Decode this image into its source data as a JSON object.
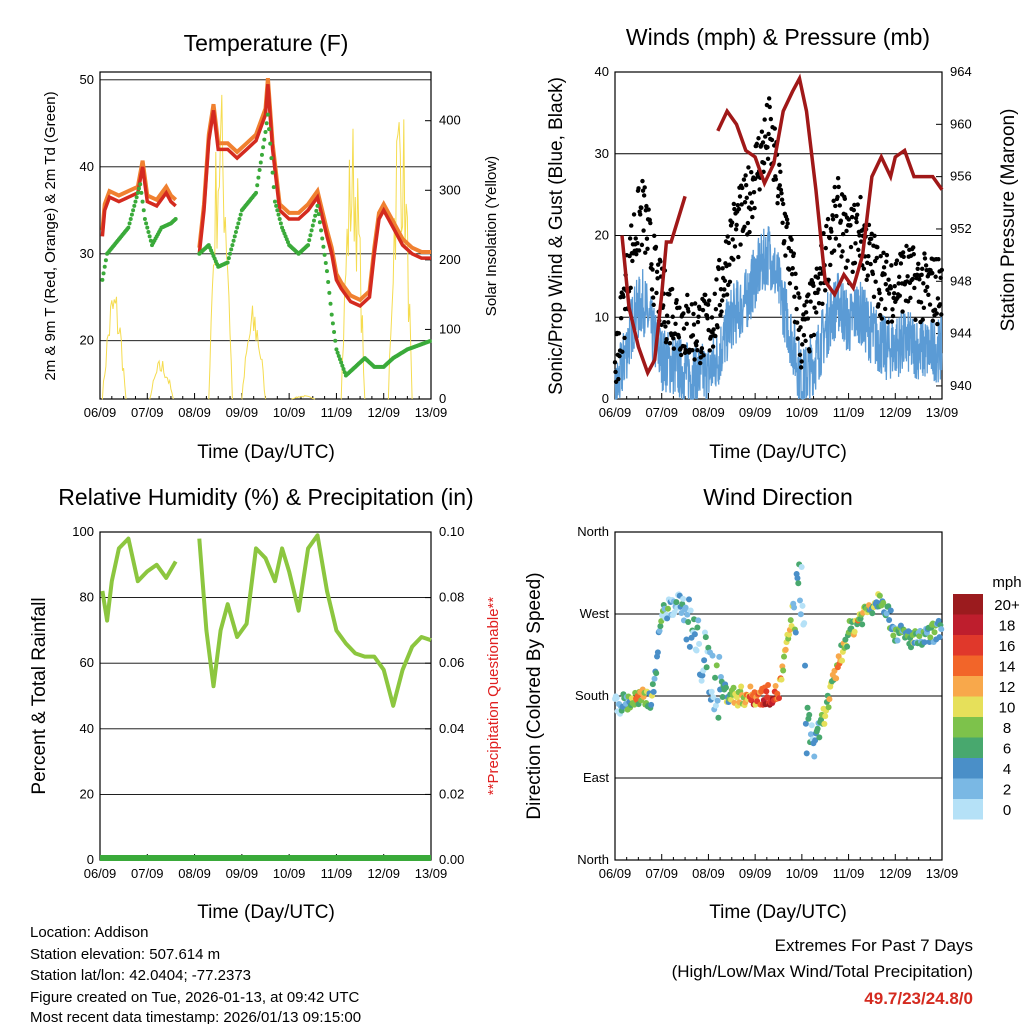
{
  "info": {
    "location": "Location: Addison",
    "elevation": "Station elevation: 507.614 m",
    "latlon": "Station lat/lon: 42.0404; -77.2373",
    "created": "Figure created on Tue, 2026-01-13, at 09:42 UTC",
    "recent": "Most recent data timestamp: 2026/01/13 09:15:00",
    "extremes_title": "Extremes For Past 7 Days",
    "extremes_sub": "(High/Low/Max Wind/Total Precipitation)",
    "extremes_value": "49.7/23/24.8/0"
  },
  "colors": {
    "temp": "#d42a1f",
    "temp9m": "#f08030",
    "dew": "#3aaa3a",
    "solar": "#f5dc50",
    "gust": "#000000",
    "wind": "#5b9bd5",
    "pressure": "#a01818",
    "rh": "#8cc63f",
    "precip": "#3aaa3a",
    "accent": "#d42a1f"
  },
  "chart_data": [
    {
      "type": "line",
      "title": "Temperature (F)",
      "xlabel": "Time (Day/UTC)",
      "ylabel": "2m & 9m T (Red, Orange) & 2m Td (Green)",
      "y2label": "Solar Insolation (Yellow)",
      "xticks": [
        "06/09",
        "07/09",
        "08/09",
        "09/09",
        "10/09",
        "11/09",
        "12/09",
        "13/09"
      ],
      "xlim": [
        0,
        7
      ],
      "ylim": [
        13.3,
        50.9
      ],
      "y2lim": [
        0,
        470
      ],
      "yticks": [
        "20",
        "30",
        "40",
        "50"
      ],
      "y2ticks": [
        "0",
        "100",
        "200",
        "300",
        "400"
      ],
      "series": [
        {
          "name": "2m T",
          "points": [
            [
              0.05,
              32
            ],
            [
              0.1,
              35
            ],
            [
              0.2,
              36.5
            ],
            [
              0.4,
              36
            ],
            [
              0.6,
              36.5
            ],
            [
              0.8,
              37
            ],
            [
              0.9,
              40
            ],
            [
              1.0,
              36
            ],
            [
              1.2,
              35.5
            ],
            [
              1.4,
              37
            ],
            [
              1.5,
              36
            ],
            [
              1.6,
              35.5
            ],
            null,
            [
              2.1,
              30
            ],
            [
              2.2,
              35
            ],
            [
              2.3,
              43
            ],
            [
              2.4,
              46.5
            ],
            [
              2.5,
              42
            ],
            [
              2.7,
              42
            ],
            [
              2.9,
              41
            ],
            [
              3.1,
              42
            ],
            [
              3.3,
              43
            ],
            [
              3.5,
              46
            ],
            [
              3.55,
              49.5
            ],
            [
              3.65,
              42
            ],
            [
              3.8,
              35
            ],
            [
              4.0,
              34
            ],
            [
              4.2,
              34
            ],
            [
              4.4,
              35
            ],
            [
              4.6,
              36.5
            ],
            [
              4.8,
              32
            ],
            [
              4.9,
              30
            ],
            [
              5.0,
              27
            ],
            [
              5.1,
              26
            ],
            [
              5.3,
              24.5
            ],
            [
              5.5,
              24
            ],
            [
              5.7,
              25
            ],
            [
              5.8,
              30
            ],
            [
              5.9,
              34
            ],
            [
              6.0,
              35
            ],
            [
              6.2,
              33
            ],
            [
              6.4,
              31
            ],
            [
              6.6,
              30
            ],
            [
              6.8,
              29.5
            ],
            [
              7.0,
              29.5
            ]
          ]
        },
        {
          "name": "2m Td",
          "points": [
            [
              0.05,
              27
            ],
            [
              0.15,
              30
            ],
            [
              0.3,
              31
            ],
            [
              0.6,
              33
            ],
            [
              0.85,
              38
            ],
            [
              0.95,
              34
            ],
            [
              1.1,
              31
            ],
            [
              1.3,
              33
            ],
            [
              1.5,
              33.5
            ],
            [
              1.6,
              34
            ],
            null,
            [
              2.1,
              30
            ],
            [
              2.3,
              31
            ],
            [
              2.5,
              28.5
            ],
            [
              2.7,
              29
            ],
            [
              3.0,
              35
            ],
            [
              3.3,
              37
            ],
            [
              3.5,
              44
            ],
            [
              3.55,
              46
            ],
            [
              3.7,
              36
            ],
            [
              3.85,
              33
            ],
            [
              4.0,
              31
            ],
            [
              4.2,
              30
            ],
            [
              4.4,
              31
            ],
            [
              4.6,
              35.5
            ],
            [
              4.8,
              28
            ],
            [
              4.9,
              23
            ],
            [
              5.0,
              19
            ],
            [
              5.2,
              16
            ],
            [
              5.4,
              17
            ],
            [
              5.6,
              18
            ],
            [
              5.8,
              17
            ],
            [
              6.0,
              17
            ],
            [
              6.2,
              18
            ],
            [
              6.5,
              19
            ],
            [
              7.0,
              20
            ]
          ]
        },
        {
          "name": "Solar",
          "peaks": [
            [
              0.3,
              170
            ],
            [
              1.3,
              60
            ],
            [
              2.55,
              460
            ],
            [
              3.25,
              140
            ],
            [
              4.3,
              5
            ],
            [
              5.35,
              410
            ],
            [
              6.35,
              470
            ]
          ]
        }
      ]
    },
    {
      "type": "line",
      "title": "Winds (mph) & Pressure (mb)",
      "xlabel": "Time (Day/UTC)",
      "ylabel": "Sonic/Prop Wind & Gust (Blue, Black)",
      "y2label": "Station Pressure (Maroon)",
      "xticks": [
        "06/09",
        "07/09",
        "08/09",
        "09/09",
        "10/09",
        "11/09",
        "12/09",
        "13/09"
      ],
      "xlim": [
        0,
        7
      ],
      "ylim": [
        0,
        40
      ],
      "y2lim": [
        939,
        964
      ],
      "yticks": [
        "0",
        "10",
        "20",
        "30",
        "40"
      ],
      "y2ticks": [
        "940",
        "944",
        "948",
        "952",
        "956",
        "960",
        "964"
      ],
      "series": [
        {
          "name": "Wind",
          "points": [
            [
              0,
              0
            ],
            [
              0.2,
              5
            ],
            [
              0.4,
              10
            ],
            [
              0.6,
              12
            ],
            [
              0.8,
              8
            ],
            [
              1,
              5
            ],
            [
              1.3,
              4
            ],
            [
              1.6,
              3
            ],
            [
              1.8,
              3
            ],
            [
              2.0,
              3
            ],
            [
              2.2,
              5
            ],
            [
              2.5,
              10
            ],
            [
              2.8,
              12
            ],
            [
              3.0,
              15
            ],
            [
              3.3,
              18
            ],
            [
              3.5,
              14
            ],
            [
              3.8,
              7
            ],
            [
              4.0,
              2
            ],
            [
              4.3,
              5
            ],
            [
              4.6,
              10
            ],
            [
              4.8,
              12
            ],
            [
              5.0,
              9
            ],
            [
              5.2,
              11
            ],
            [
              5.5,
              8
            ],
            [
              5.8,
              6
            ],
            [
              6.2,
              7
            ],
            [
              6.6,
              6
            ],
            [
              7.0,
              6
            ]
          ]
        },
        {
          "name": "Pressure",
          "points": [
            [
              0.15,
              951.5
            ],
            [
              0.3,
              946
            ],
            [
              0.5,
              943
            ],
            [
              0.7,
              941
            ],
            [
              0.85,
              942
            ],
            [
              1.0,
              947
            ],
            [
              1.1,
              951
            ],
            [
              1.2,
              951
            ],
            [
              1.5,
              954.5
            ],
            null,
            [
              2.2,
              959.5
            ],
            [
              2.4,
              961
            ],
            [
              2.6,
              960
            ],
            [
              2.8,
              958
            ],
            [
              3.0,
              957.5
            ],
            [
              3.2,
              955.5
            ],
            [
              3.4,
              957
            ],
            [
              3.6,
              961
            ],
            [
              3.8,
              962.5
            ],
            [
              3.95,
              963.5
            ],
            [
              4.1,
              961
            ],
            [
              4.3,
              955
            ],
            [
              4.5,
              948
            ],
            [
              4.7,
              947
            ],
            [
              4.9,
              948.5
            ],
            [
              5.1,
              947.5
            ],
            [
              5.3,
              950
            ],
            [
              5.5,
              956
            ],
            [
              5.7,
              957.5
            ],
            [
              5.9,
              956
            ],
            [
              6.0,
              957.5
            ],
            [
              6.2,
              958
            ],
            [
              6.4,
              956
            ],
            [
              6.8,
              956
            ],
            [
              7.0,
              955
            ]
          ]
        }
      ]
    },
    {
      "type": "line",
      "title": "Relative Humidity (%) & Precipitation (in)",
      "xlabel": "Time (Day/UTC)",
      "ylabel": "Percent & Total Rainfall",
      "y2label": "**Precipitation Questionable**",
      "xticks": [
        "06/09",
        "07/09",
        "08/09",
        "09/09",
        "10/09",
        "11/09",
        "12/09",
        "13/09"
      ],
      "xlim": [
        0,
        7
      ],
      "ylim": [
        0,
        100
      ],
      "y2lim": [
        0,
        0.1
      ],
      "yticks": [
        "0",
        "20",
        "40",
        "60",
        "80",
        "100"
      ],
      "y2ticks": [
        "0.00",
        "0.02",
        "0.04",
        "0.06",
        "0.08",
        "0.10"
      ],
      "series": [
        {
          "name": "RH",
          "points": [
            [
              0.05,
              82
            ],
            [
              0.15,
              73
            ],
            [
              0.25,
              85
            ],
            [
              0.4,
              95
            ],
            [
              0.6,
              98
            ],
            [
              0.8,
              85
            ],
            [
              1.0,
              88
            ],
            [
              1.2,
              90
            ],
            [
              1.4,
              86
            ],
            [
              1.6,
              91
            ],
            null,
            [
              2.1,
              98
            ],
            [
              2.25,
              70
            ],
            [
              2.4,
              53
            ],
            [
              2.55,
              70
            ],
            [
              2.7,
              78
            ],
            [
              2.9,
              68
            ],
            [
              3.1,
              72
            ],
            [
              3.3,
              95
            ],
            [
              3.5,
              92
            ],
            [
              3.7,
              85
            ],
            [
              3.85,
              95
            ],
            [
              4.0,
              88
            ],
            [
              4.2,
              76
            ],
            [
              4.4,
              95
            ],
            [
              4.6,
              99
            ],
            [
              4.8,
              82
            ],
            [
              5.0,
              70
            ],
            [
              5.2,
              66
            ],
            [
              5.4,
              63
            ],
            [
              5.6,
              62
            ],
            [
              5.8,
              62
            ],
            [
              6.0,
              58
            ],
            [
              6.2,
              47
            ],
            [
              6.4,
              58
            ],
            [
              6.6,
              65
            ],
            [
              6.8,
              68
            ],
            [
              7.0,
              67
            ]
          ]
        },
        {
          "name": "Precip",
          "value": 0
        }
      ]
    },
    {
      "type": "scatter",
      "title": "Wind Direction",
      "xlabel": "Time (Day/UTC)",
      "ylabel": "Direction (Colored By Speed)",
      "xticks": [
        "06/09",
        "07/09",
        "08/09",
        "09/09",
        "10/09",
        "11/09",
        "12/09",
        "13/09"
      ],
      "xlim": [
        0,
        7
      ],
      "ylim": [
        0,
        360
      ],
      "yticks": [
        "North",
        "East",
        "South",
        "West",
        "North"
      ],
      "series": [
        {
          "name": "Direction",
          "points": [
            [
              0,
              170
            ],
            [
              0.4,
              175
            ],
            [
              0.8,
              178
            ],
            [
              1.0,
              270
            ],
            [
              1.4,
              285
            ],
            [
              1.7,
              240
            ],
            [
              2.0,
              210
            ],
            [
              2.2,
              190
            ],
            [
              2.5,
              180
            ],
            [
              3.0,
              180
            ],
            [
              3.5,
              182
            ],
            [
              3.8,
              270
            ],
            [
              4.0,
              305
            ],
            [
              4.1,
              150
            ],
            [
              4.3,
              130
            ],
            [
              4.6,
              180
            ],
            [
              4.8,
              220
            ],
            [
              5.0,
              250
            ],
            [
              5.3,
              270
            ],
            [
              5.7,
              290
            ],
            [
              6.0,
              250
            ],
            [
              6.5,
              240
            ],
            [
              7.0,
              255
            ]
          ]
        }
      ],
      "legend": {
        "title": "mph",
        "labels": [
          "20+",
          "18",
          "16",
          "14",
          "12",
          "10",
          "8",
          "6",
          "4",
          "2",
          "0"
        ],
        "colors": [
          "#9b1b1e",
          "#be1e2d",
          "#e0382b",
          "#f26529",
          "#f8a84b",
          "#e6e05a",
          "#7dc24b",
          "#48a86e",
          "#4a8fc8",
          "#7ab8e4",
          "#b5e1f7"
        ]
      }
    }
  ]
}
